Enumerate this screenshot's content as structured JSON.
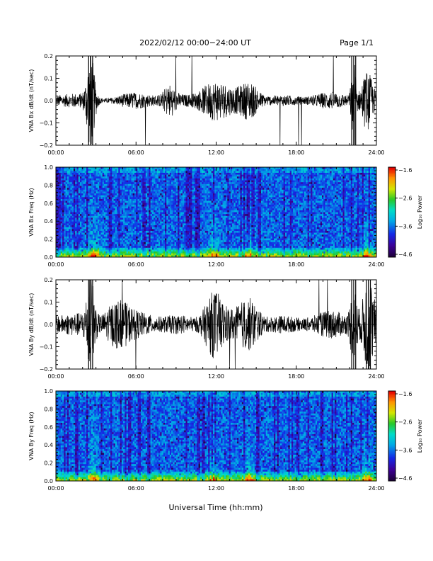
{
  "header": {
    "date_range": "2022/02/12  00:00−24:00 UT",
    "page": "Page 1/1"
  },
  "x_axis_title": "Universal Time (hh:mm)",
  "chart_data": [
    {
      "type": "line",
      "ylabel": "VNA Bx dB/dt (nT/sec)",
      "xlim_hours": [
        0,
        24
      ],
      "ylim": [
        -0.2,
        0.2
      ],
      "xticks": [
        "00:00",
        "06:00",
        "12:00",
        "18:00",
        "24:00"
      ],
      "yticks": [
        "0.2",
        "0.1",
        "0.0",
        "−0.1",
        "−0.2"
      ],
      "bursts": [
        {
          "t": 2.6,
          "amp": 0.2,
          "w": 0.35
        },
        {
          "t": 8.5,
          "amp": 0.05,
          "w": 0.5
        },
        {
          "t": 11.8,
          "amp": 0.07,
          "w": 1.2
        },
        {
          "t": 14.5,
          "amp": 0.06,
          "w": 0.8
        },
        {
          "t": 22.3,
          "amp": 0.2,
          "w": 0.2
        },
        {
          "t": 23.3,
          "amp": 0.12,
          "w": 0.5
        }
      ],
      "baseline_amp": 0.025
    },
    {
      "type": "heatmap",
      "ylabel": "VNA Bx Freq (Hz)",
      "colorbar_label": "Log₁₀ Power",
      "colorbar_ticks": [
        "−1.6",
        "−2.6",
        "−3.6",
        "−4.6"
      ],
      "clim": [
        -4.6,
        -1.6
      ],
      "xlim_hours": [
        0,
        24
      ],
      "ylim": [
        0.0,
        1.0
      ],
      "xticks": [
        "00:00",
        "06:00",
        "12:00",
        "18:00",
        "24:00"
      ],
      "yticks": [
        "1.0",
        "0.8",
        "0.6",
        "0.4",
        "0.2",
        "0.0"
      ],
      "hot_times": [
        2.8,
        11.8,
        14.5,
        23.3
      ]
    },
    {
      "type": "line",
      "ylabel": "VNA By dB/dt (nT/sec)",
      "xlim_hours": [
        0,
        24
      ],
      "ylim": [
        -0.2,
        0.2
      ],
      "xticks": [
        "00:00",
        "06:00",
        "12:00",
        "18:00",
        "24:00"
      ],
      "yticks": [
        "0.2",
        "0.1",
        "0.0",
        "−0.1",
        "−0.2"
      ],
      "bursts": [
        {
          "t": 2.6,
          "amp": 0.2,
          "w": 0.35
        },
        {
          "t": 4.5,
          "amp": 0.08,
          "w": 1.0
        },
        {
          "t": 11.8,
          "amp": 0.12,
          "w": 0.8
        },
        {
          "t": 14.5,
          "amp": 0.08,
          "w": 0.8
        },
        {
          "t": 22.3,
          "amp": 0.15,
          "w": 0.3
        },
        {
          "t": 23.4,
          "amp": 0.2,
          "w": 0.5
        }
      ],
      "baseline_amp": 0.04
    },
    {
      "type": "heatmap",
      "ylabel": "VNA By Freq (Hz)",
      "colorbar_label": "Log₁₀ Power",
      "colorbar_ticks": [
        "−1.6",
        "−2.6",
        "−3.6",
        "−4.6"
      ],
      "clim": [
        -4.6,
        -1.6
      ],
      "xlim_hours": [
        0,
        24
      ],
      "ylim": [
        0.0,
        1.0
      ],
      "xticks": [
        "00:00",
        "06:00",
        "12:00",
        "18:00",
        "24:00"
      ],
      "yticks": [
        "1.0",
        "0.8",
        "0.6",
        "0.4",
        "0.2",
        "0.0"
      ],
      "hot_times": [
        2.8,
        11.8,
        14.5,
        23.3
      ]
    }
  ]
}
